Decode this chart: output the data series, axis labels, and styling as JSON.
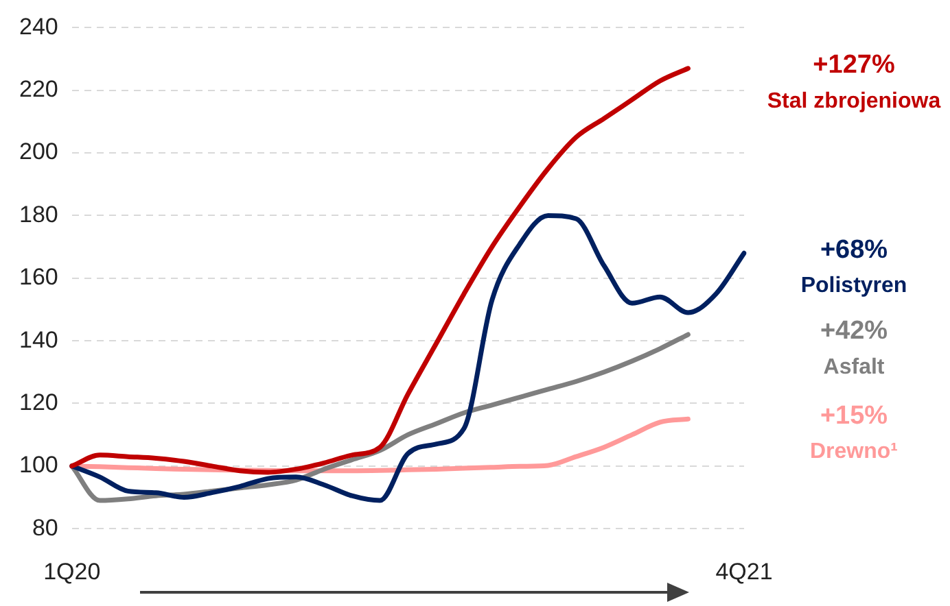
{
  "chart_data": {
    "type": "line",
    "categories": [
      "1Q20",
      null,
      null,
      null,
      null,
      null,
      null,
      null,
      null,
      null,
      null,
      null,
      null,
      null,
      null,
      null,
      null,
      null,
      null,
      null,
      null,
      null,
      null,
      null,
      "4Q21"
    ],
    "series": [
      {
        "name": "Stal zbrojeniowa",
        "color": "#c00000",
        "values": [
          100,
          103.5,
          103,
          102.5,
          101.5,
          100,
          98.5,
          98,
          99,
          101,
          103.5,
          106,
          123,
          139,
          155,
          170,
          183,
          195,
          205,
          211,
          217,
          223,
          227,
          null,
          null
        ]
      },
      {
        "name": "Polistyren",
        "color": "#002060",
        "values": [
          100,
          96.5,
          92,
          91.5,
          90,
          91.5,
          93.5,
          96,
          96.5,
          94,
          90.5,
          89,
          104,
          107,
          112,
          153,
          171,
          180,
          179,
          164,
          152,
          154,
          149,
          155,
          168
        ]
      },
      {
        "name": "Asfalt",
        "color": "#7f7f7f",
        "values": [
          100,
          89,
          89.5,
          90.5,
          91,
          92,
          93,
          94,
          95.5,
          99,
          102,
          105,
          110,
          113.5,
          117,
          119.5,
          122,
          124.5,
          127,
          130,
          133.5,
          137.5,
          142,
          null,
          null
        ]
      },
      {
        "name": "Drewno¹",
        "color": "#ff9999",
        "values": [
          100,
          99.8,
          99.5,
          99.2,
          99,
          98.8,
          98.7,
          98.6,
          98.5,
          98.5,
          98.5,
          98.6,
          98.8,
          99,
          99.3,
          99.6,
          99.9,
          100.2,
          103,
          106,
          110,
          114,
          115,
          null,
          null
        ]
      }
    ],
    "annotations": [
      "+127%",
      "+68%",
      "+42%",
      "+15%"
    ],
    "ylim": [
      80,
      240
    ],
    "yticks": [
      80,
      100,
      120,
      140,
      160,
      180,
      200,
      220,
      240
    ],
    "grid": "y",
    "legend": false
  }
}
